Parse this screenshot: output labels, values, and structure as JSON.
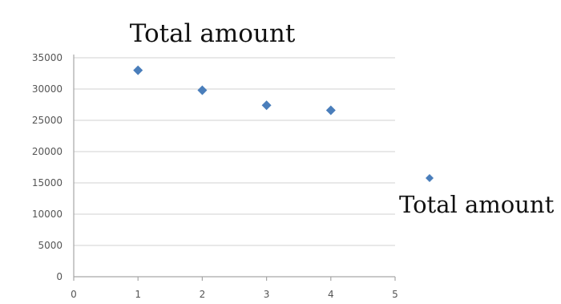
{
  "chart_data": {
    "type": "scatter",
    "title": "Total amount",
    "xlabel": "",
    "ylabel": "",
    "xlim": [
      0,
      5
    ],
    "ylim": [
      0,
      35000
    ],
    "xticks": [
      "0",
      "1",
      "2",
      "3",
      "4",
      "5"
    ],
    "yticks": [
      "0",
      "5000",
      "10000",
      "15000",
      "20000",
      "25000",
      "30000",
      "35000"
    ],
    "grid": "horizontal",
    "legend_position": "right",
    "series": [
      {
        "name": "Total amount",
        "color": "#4a7ebb",
        "marker": "diamond",
        "x": [
          1,
          2,
          3,
          4
        ],
        "y": [
          33000,
          29800,
          27400,
          26600
        ]
      }
    ]
  }
}
